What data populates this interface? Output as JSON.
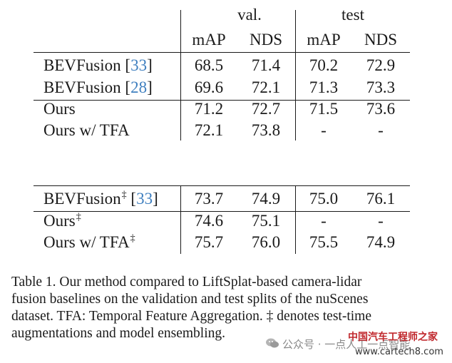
{
  "headers": {
    "val_group": "val.",
    "test_group": "test",
    "cols": [
      "mAP",
      "NDS",
      "mAP",
      "NDS"
    ]
  },
  "table1": {
    "rows": [
      {
        "method": "BEVFusion ",
        "cite": "33",
        "dagger": "",
        "values": [
          "68.5",
          "71.4",
          "70.2",
          "72.9"
        ]
      },
      {
        "method": "BEVFusion ",
        "cite": "28",
        "dagger": "",
        "values": [
          "69.6",
          "72.1",
          "71.3",
          "73.3"
        ]
      },
      {
        "method": "Ours",
        "cite": "",
        "dagger": "",
        "values": [
          "71.2",
          "72.7",
          "71.5",
          "73.6"
        ]
      },
      {
        "method": "Ours w/ TFA",
        "cite": "",
        "dagger": "",
        "values": [
          "72.1",
          "73.8",
          "-",
          "-"
        ]
      }
    ]
  },
  "table2": {
    "rows": [
      {
        "method": "BEVFusion",
        "cite": "33",
        "dagger": "‡",
        "values": [
          "73.7",
          "74.9",
          "75.0",
          "76.1"
        ]
      },
      {
        "method": "Ours",
        "cite": "",
        "dagger": "‡",
        "values": [
          "74.6",
          "75.1",
          "-",
          "-"
        ]
      },
      {
        "method": "Ours w/ TFA",
        "cite": "",
        "dagger": "‡",
        "values": [
          "75.7",
          "76.0",
          "75.5",
          "74.9"
        ]
      }
    ]
  },
  "caption": {
    "lines": [
      "Table 1.   Our method compared to LiftSplat-based camera-lidar",
      "fusion baselines on the validation and test splits of the nuScenes",
      "dataset. TFA: Temporal Feature Aggregation. ‡ denotes test-time",
      "augmentations and model ensembling."
    ]
  },
  "watermark": {
    "wechat": "公众号 · 一点人工一点智能",
    "brand": "中国汽车工程师之家",
    "url": "www.cartech8.com"
  }
}
